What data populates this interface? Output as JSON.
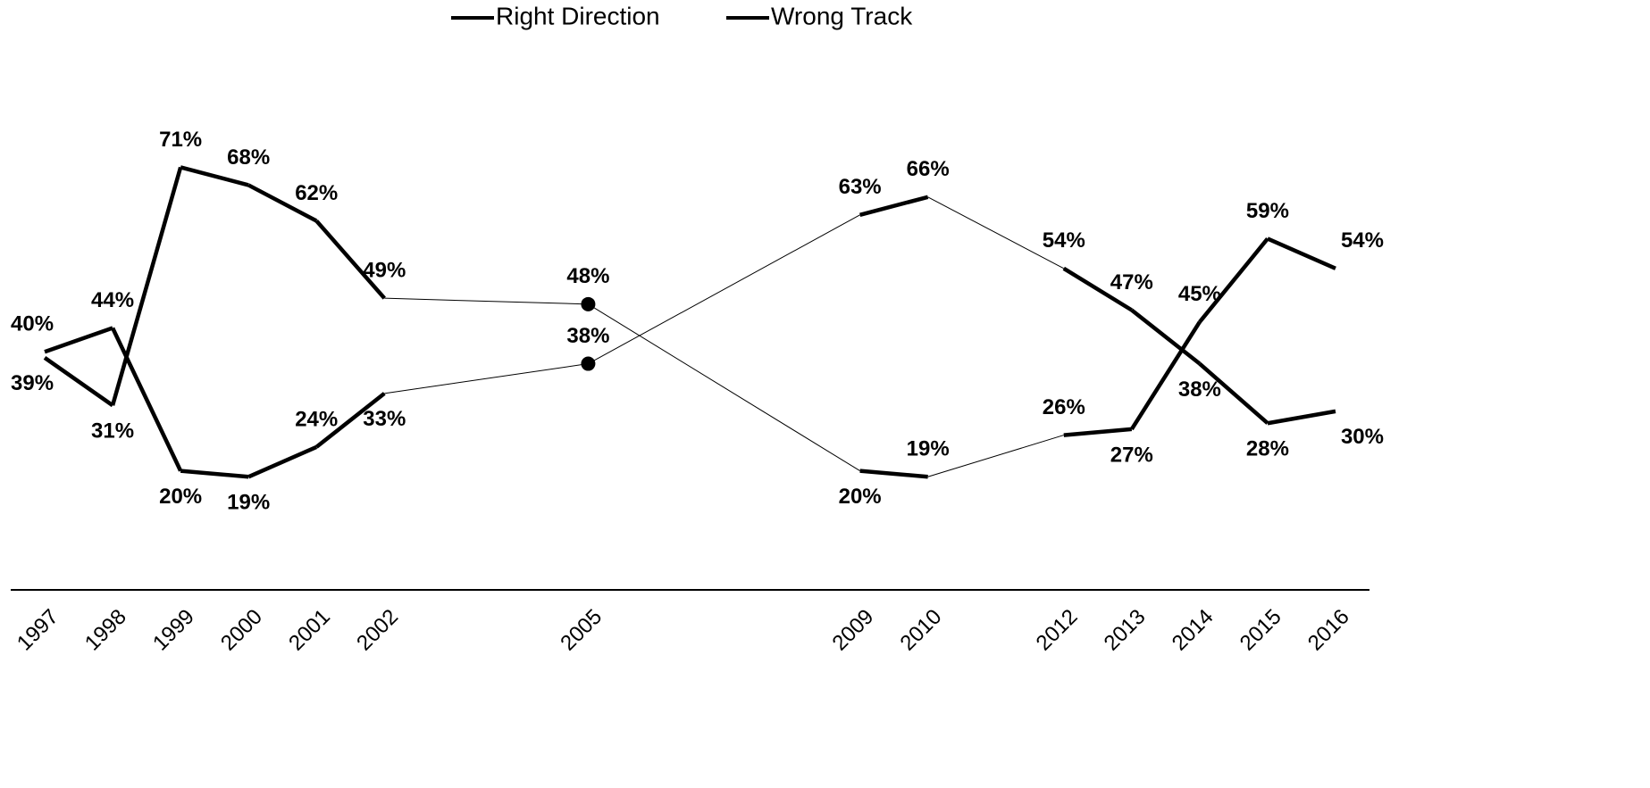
{
  "chart_data": {
    "type": "line",
    "x": [
      1997,
      1998,
      1999,
      2000,
      2001,
      2002,
      2005,
      2009,
      2010,
      2012,
      2013,
      2014,
      2015,
      2016
    ],
    "xlim": [
      1996.5,
      2016.5
    ],
    "ylim": [
      0,
      100
    ],
    "series": [
      {
        "name": "Right Direction",
        "color": "#000000",
        "values": [
          40,
          44,
          20,
          19,
          24,
          33,
          38,
          63,
          66,
          54,
          47,
          38,
          28,
          30
        ],
        "value_labels": [
          "40%",
          "44%",
          "20%",
          "19%",
          "24%",
          "33%",
          "38%",
          "63%",
          "66%",
          "54%",
          "47%",
          "38%",
          "28%",
          "30%"
        ]
      },
      {
        "name": "Wrong Track",
        "color": "#000000",
        "values": [
          39,
          31,
          71,
          68,
          62,
          49,
          48,
          20,
          19,
          26,
          27,
          45,
          59,
          54
        ],
        "value_labels": [
          "39%",
          "31%",
          "71%",
          "68%",
          "62%",
          "49%",
          "48%",
          "20%",
          "19%",
          "26%",
          "27%",
          "45%",
          "59%",
          "54%"
        ]
      }
    ]
  }
}
